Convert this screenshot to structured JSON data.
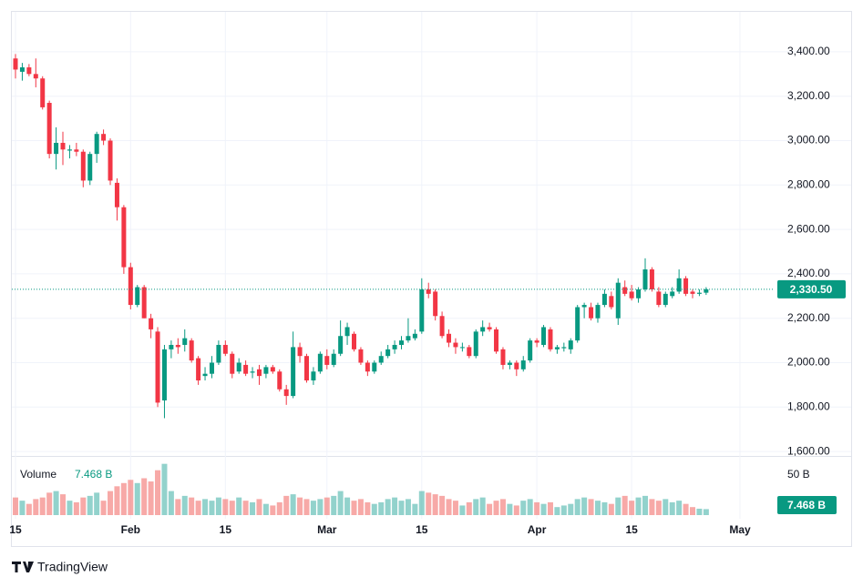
{
  "chart_data": {
    "type": "candlestick",
    "x": [
      "01-15",
      "01-16",
      "01-17",
      "01-18",
      "01-19",
      "01-20",
      "01-21",
      "01-22",
      "01-23",
      "01-24",
      "01-25",
      "01-26",
      "01-27",
      "01-28",
      "01-29",
      "01-30",
      "01-31",
      "02-01",
      "02-02",
      "02-03",
      "02-04",
      "02-05",
      "02-06",
      "02-07",
      "02-08",
      "02-09",
      "02-10",
      "02-11",
      "02-12",
      "02-13",
      "02-14",
      "02-15",
      "02-16",
      "02-17",
      "02-18",
      "02-19",
      "02-20",
      "02-21",
      "02-22",
      "02-23",
      "02-24",
      "02-25",
      "02-26",
      "02-27",
      "02-28",
      "02-29",
      "03-01",
      "03-02",
      "03-03",
      "03-04",
      "03-05",
      "03-06",
      "03-07",
      "03-08",
      "03-09",
      "03-10",
      "03-11",
      "03-12",
      "03-13",
      "03-14",
      "03-15",
      "03-16",
      "03-17",
      "03-18",
      "03-19",
      "03-20",
      "03-21",
      "03-22",
      "03-23",
      "03-24",
      "03-25",
      "03-26",
      "03-27",
      "03-28",
      "03-29",
      "03-30",
      "03-31",
      "04-01",
      "04-02",
      "04-03",
      "04-04",
      "04-05",
      "04-06",
      "04-07",
      "04-08",
      "04-09",
      "04-10",
      "04-11",
      "04-12",
      "04-13",
      "04-14",
      "04-15",
      "04-16",
      "04-17",
      "04-18",
      "04-19",
      "04-20",
      "04-21",
      "04-22",
      "04-23",
      "04-24",
      "04-25",
      "04-26"
    ],
    "open": [
      3370,
      3310,
      3330,
      3300,
      3280,
      3170,
      2940,
      2990,
      2955,
      2960,
      2950,
      2820,
      2940,
      3030,
      3000,
      2810,
      2700,
      2430,
      2260,
      2340,
      2200,
      2140,
      1830,
      2060,
      2080,
      2080,
      2100,
      2020,
      1940,
      1950,
      2000,
      2080,
      2040,
      1960,
      1990,
      1955,
      1970,
      1950,
      1980,
      1960,
      1880,
      1850,
      2070,
      2030,
      1920,
      1960,
      2030,
      1990,
      2040,
      2120,
      2130,
      2060,
      2000,
      1960,
      2000,
      2030,
      2060,
      2080,
      2100,
      2110,
      2140,
      2330,
      2320,
      2210,
      2130,
      2090,
      2070,
      2070,
      2030,
      2140,
      2160,
      2150,
      2060,
      1990,
      2000,
      1970,
      2010,
      2100,
      2080,
      2150,
      2060,
      2065,
      2060,
      2100,
      2250,
      2250,
      2200,
      2260,
      2300,
      2200,
      2340,
      2320,
      2290,
      2330,
      2420,
      2320,
      2260,
      2300,
      2320,
      2380,
      2320,
      2310,
      2315
    ],
    "high": [
      3390,
      3350,
      3345,
      3370,
      3290,
      3180,
      3060,
      3040,
      2980,
      2990,
      2960,
      2950,
      3040,
      3050,
      3010,
      2830,
      2710,
      2450,
      2350,
      2350,
      2220,
      2160,
      2080,
      2100,
      2110,
      2150,
      2110,
      2030,
      1980,
      2030,
      2100,
      2100,
      2050,
      2020,
      2010,
      1980,
      1990,
      1990,
      1990,
      1970,
      1900,
      2140,
      2090,
      2040,
      1980,
      2050,
      2060,
      2060,
      2190,
      2180,
      2140,
      2070,
      2010,
      2010,
      2050,
      2080,
      2100,
      2120,
      2200,
      2150,
      2380,
      2360,
      2330,
      2230,
      2150,
      2110,
      2090,
      2080,
      2150,
      2190,
      2180,
      2160,
      2070,
      2010,
      2010,
      2030,
      2110,
      2110,
      2170,
      2160,
      2080,
      2090,
      2110,
      2260,
      2270,
      2270,
      2270,
      2330,
      2320,
      2380,
      2370,
      2350,
      2340,
      2470,
      2430,
      2340,
      2320,
      2340,
      2420,
      2390,
      2330,
      2330,
      2340
    ],
    "low": [
      3280,
      3270,
      3290,
      3240,
      3140,
      2920,
      2870,
      2890,
      2920,
      2930,
      2790,
      2800,
      2900,
      2980,
      2800,
      2640,
      2400,
      2240,
      2250,
      2200,
      2110,
      1800,
      1750,
      2020,
      2040,
      2050,
      2000,
      1900,
      1920,
      1930,
      1990,
      2030,
      1930,
      1950,
      1940,
      1930,
      1900,
      1930,
      1950,
      1870,
      1810,
      1840,
      2000,
      1910,
      1900,
      1950,
      1970,
      1980,
      2030,
      2080,
      2050,
      1990,
      1940,
      1950,
      1990,
      2020,
      2040,
      2060,
      2090,
      2100,
      2130,
      2290,
      2190,
      2110,
      2070,
      2040,
      2050,
      2020,
      2020,
      2120,
      2140,
      2040,
      1970,
      1970,
      1940,
      1960,
      2000,
      2070,
      2070,
      2050,
      2040,
      2050,
      2040,
      2090,
      2200,
      2190,
      2180,
      2250,
      2240,
      2170,
      2300,
      2280,
      2270,
      2320,
      2320,
      2250,
      2250,
      2290,
      2310,
      2300,
      2290,
      2300,
      2305
    ],
    "close": [
      3320,
      3330,
      3300,
      3280,
      3150,
      2940,
      2990,
      2960,
      2960,
      2950,
      2820,
      2940,
      3030,
      3000,
      2820,
      2700,
      2430,
      2260,
      2340,
      2200,
      2150,
      1820,
      2060,
      2080,
      2070,
      2110,
      2010,
      1920,
      1950,
      2000,
      2080,
      2040,
      1950,
      2000,
      1950,
      1960,
      1940,
      1980,
      1960,
      1880,
      1850,
      2070,
      2030,
      1920,
      1960,
      2040,
      1990,
      2040,
      2120,
      2160,
      2060,
      2000,
      1960,
      2000,
      2030,
      2060,
      2080,
      2100,
      2120,
      2130,
      2330,
      2310,
      2210,
      2120,
      2090,
      2070,
      2070,
      2030,
      2140,
      2160,
      2150,
      2050,
      1990,
      2000,
      1970,
      2010,
      2100,
      2090,
      2160,
      2060,
      2070,
      2070,
      2100,
      2250,
      2260,
      2200,
      2260,
      2310,
      2250,
      2360,
      2310,
      2290,
      2330,
      2420,
      2330,
      2260,
      2310,
      2320,
      2380,
      2310,
      2310,
      2315,
      2330.5
    ],
    "volume": [
      22,
      18,
      14,
      20,
      22,
      28,
      30,
      26,
      18,
      16,
      22,
      24,
      28,
      18,
      30,
      36,
      40,
      44,
      40,
      46,
      42,
      56,
      64,
      30,
      20,
      24,
      22,
      18,
      20,
      18,
      22,
      20,
      18,
      22,
      18,
      16,
      20,
      14,
      12,
      16,
      24,
      26,
      22,
      20,
      18,
      20,
      22,
      24,
      30,
      22,
      18,
      20,
      16,
      14,
      16,
      20,
      22,
      18,
      20,
      14,
      30,
      28,
      26,
      24,
      20,
      18,
      12,
      16,
      20,
      22,
      14,
      18,
      20,
      14,
      12,
      18,
      20,
      16,
      14,
      16,
      10,
      12,
      14,
      20,
      22,
      20,
      18,
      16,
      14,
      22,
      24,
      18,
      22,
      24,
      20,
      18,
      20,
      16,
      18,
      14,
      10,
      8,
      7.468
    ],
    "up_color": "#089981",
    "down_color": "#f23645",
    "volume_up_color": "#26a69a",
    "volume_down_color": "#ef5350",
    "ylim": [
      1584,
      3580
    ],
    "yticks": [
      {
        "value": 1600,
        "label": "1,600.00"
      },
      {
        "value": 1800,
        "label": "1,800.00"
      },
      {
        "value": 2000,
        "label": "2,000.00"
      },
      {
        "value": 2200,
        "label": "2,200.00"
      },
      {
        "value": 2400,
        "label": "2,400.00"
      },
      {
        "value": 2600,
        "label": "2,600.00"
      },
      {
        "value": 2800,
        "label": "2,800.00"
      },
      {
        "value": 3000,
        "label": "3,000.00"
      },
      {
        "value": 3200,
        "label": "3,200.00"
      },
      {
        "value": 3400,
        "label": "3,400.00"
      }
    ],
    "volume_lim": [
      0,
      72.7
    ],
    "volume_ticks": [
      {
        "value": 50,
        "label": "50 B"
      }
    ],
    "xticks": [
      {
        "value": "01-15",
        "label": "15"
      },
      {
        "value": "02-01",
        "label": "Feb"
      },
      {
        "value": "02-15",
        "label": "15"
      },
      {
        "value": "03-01",
        "label": "Mar"
      },
      {
        "value": "03-15",
        "label": "15"
      },
      {
        "value": "04-01",
        "label": "Apr"
      },
      {
        "value": "04-15",
        "label": "15"
      },
      {
        "value": "05-01",
        "label": "May"
      }
    ],
    "grid": true,
    "last_price": {
      "value": 2330.5,
      "label": "2,330.50"
    },
    "volume_title": "Volume",
    "last_volume": {
      "value": 7.468,
      "label": "7.468 B"
    },
    "brand": "TradingView"
  }
}
